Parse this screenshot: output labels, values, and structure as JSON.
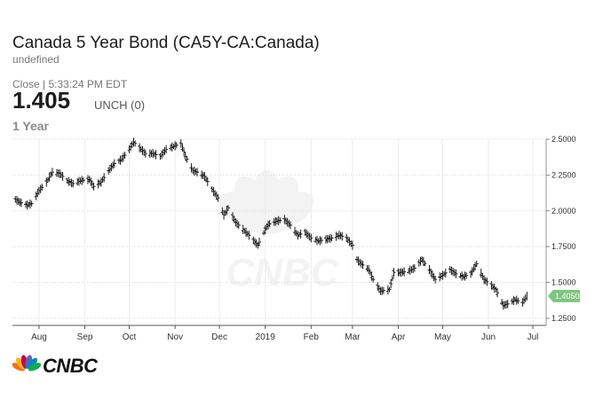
{
  "header": {
    "title": "Canada 5 Year Bond (CA5Y-CA:Canada)",
    "subtitle": "undefined",
    "close_label": "Close | 5:33:24 PM EDT",
    "price": "1.405",
    "change": "UNCH (0)",
    "range": "1 Year"
  },
  "logo": {
    "text": "CNBC"
  },
  "chart_data": {
    "type": "line",
    "style": "ohlc-bars",
    "title": "",
    "xlabel": "",
    "ylabel": "",
    "ylim": [
      1.2,
      2.5
    ],
    "yticks": [
      "2.5000",
      "2.2500",
      "2.0000",
      "1.7500",
      "1.5000",
      "1.2500"
    ],
    "ytick_values": [
      2.5,
      2.25,
      2.0,
      1.75,
      1.5,
      1.25
    ],
    "xticks": [
      "Aug",
      "Sep",
      "Oct",
      "Nov",
      "Dec",
      "2019",
      "Feb",
      "Mar",
      "Apr",
      "May",
      "Jun",
      "Jul"
    ],
    "last_value_label": "1.4050",
    "grid": true,
    "colors": {
      "bars": "#1a1a1a",
      "grid": "#d9d9d9",
      "badge": "#7dc67e",
      "axis": "#666666"
    },
    "series": [
      {
        "x": [
          "2018-07-16",
          "2018-07-19",
          "2018-07-24",
          "2018-07-27",
          "2018-08-01",
          "2018-08-06",
          "2018-08-10",
          "2018-08-15",
          "2018-08-20",
          "2018-08-24",
          "2018-08-29",
          "2018-09-04",
          "2018-09-07",
          "2018-09-12",
          "2018-09-17",
          "2018-09-21",
          "2018-09-26",
          "2018-10-01",
          "2018-10-04",
          "2018-10-09",
          "2018-10-12",
          "2018-10-17",
          "2018-10-22",
          "2018-10-26",
          "2018-10-31",
          "2018-11-05",
          "2018-11-08",
          "2018-11-13",
          "2018-11-16",
          "2018-11-21",
          "2018-11-26",
          "2018-11-30",
          "2018-12-04",
          "2018-12-07",
          "2018-12-12",
          "2018-12-17",
          "2018-12-20",
          "2018-12-27",
          "2019-01-02",
          "2019-01-04",
          "2019-01-09",
          "2019-01-14",
          "2019-01-18",
          "2019-01-23",
          "2019-01-28",
          "2019-02-01",
          "2019-02-06",
          "2019-02-11",
          "2019-02-15",
          "2019-02-20",
          "2019-02-25",
          "2019-03-01",
          "2019-03-04",
          "2019-03-07",
          "2019-03-12",
          "2019-03-15",
          "2019-03-20",
          "2019-03-26",
          "2019-03-29",
          "2019-04-03",
          "2019-04-08",
          "2019-04-12",
          "2019-04-17",
          "2019-04-22",
          "2019-04-26",
          "2019-05-01",
          "2019-05-06",
          "2019-05-10",
          "2019-05-15",
          "2019-05-20",
          "2019-05-24",
          "2019-05-29",
          "2019-06-03",
          "2019-06-06",
          "2019-06-11",
          "2019-06-14",
          "2019-06-19",
          "2019-06-24",
          "2019-06-27"
        ],
        "y": [
          2.08,
          2.06,
          2.04,
          2.05,
          2.14,
          2.2,
          2.27,
          2.26,
          2.21,
          2.19,
          2.21,
          2.22,
          2.17,
          2.2,
          2.28,
          2.33,
          2.36,
          2.43,
          2.48,
          2.43,
          2.4,
          2.4,
          2.38,
          2.43,
          2.45,
          2.47,
          2.38,
          2.28,
          2.27,
          2.24,
          2.15,
          2.09,
          1.97,
          2.02,
          1.92,
          1.87,
          1.84,
          1.76,
          1.89,
          1.91,
          1.93,
          1.94,
          1.9,
          1.83,
          1.85,
          1.81,
          1.79,
          1.8,
          1.81,
          1.83,
          1.81,
          1.76,
          1.66,
          1.63,
          1.59,
          1.52,
          1.44,
          1.45,
          1.57,
          1.57,
          1.58,
          1.6,
          1.66,
          1.59,
          1.52,
          1.55,
          1.59,
          1.56,
          1.54,
          1.56,
          1.63,
          1.52,
          1.48,
          1.45,
          1.34,
          1.35,
          1.38,
          1.36,
          1.405
        ]
      }
    ]
  }
}
